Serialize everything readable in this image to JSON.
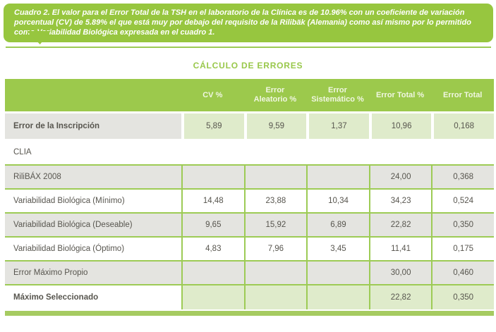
{
  "banner": {
    "text": "Cuadro 2. El valor para el Error Total de la TSH en el laboratorio de la Clínica es de 10.96% con un coeficiente de variación porcentual (CV) de 5.89% el que está muy por debajo del requisito de la Rilibäk (Alemania) como así mismo por lo permitido como Variabilidad Biológica expresada en el cuadro 1."
  },
  "title": "CÁLCULO DE ERRORES",
  "table": {
    "headers": [
      "",
      "CV %",
      "Error Aleatorio %",
      "Error Sistemático %",
      "Error Total %",
      "Error Total"
    ],
    "rows": [
      {
        "label": "Error de la Inscripción",
        "values": [
          "5,89",
          "9,59",
          "1,37",
          "10,96",
          "0,168"
        ]
      },
      {
        "label": "CLIA",
        "values": [
          "",
          "",
          "",
          "",
          ""
        ]
      },
      {
        "label": "RiliBÁX 2008",
        "values": [
          "",
          "",
          "",
          "24,00",
          "0,368"
        ]
      },
      {
        "label": "Variabilidad Biológica (Mínimo)",
        "values": [
          "14,48",
          "23,88",
          "10,34",
          "34,23",
          "0,524"
        ]
      },
      {
        "label": "Variabilidad Biológica (Deseable)",
        "values": [
          "9,65",
          "15,92",
          "6,89",
          "22,82",
          "0,350"
        ]
      },
      {
        "label": "Variabilidad Biológica (Óptimo)",
        "values": [
          "4,83",
          "7,96",
          "3,45",
          "11,41",
          "0,175"
        ]
      },
      {
        "label": "Error Máximo Propio",
        "values": [
          "",
          "",
          "",
          "30,00",
          "0,460"
        ]
      },
      {
        "label": "Máximo Seleccionado",
        "values": [
          "",
          "",
          "",
          "22,82",
          "0,350"
        ]
      }
    ]
  },
  "colors": {
    "accent_green": "#97C63F",
    "header_green": "#9CC94C",
    "border_green": "#9DCB55",
    "cell_light_green": "#DFEBCB",
    "cell_gray": "#E4E4E0",
    "footer_bar_green": "#A6CB61"
  }
}
